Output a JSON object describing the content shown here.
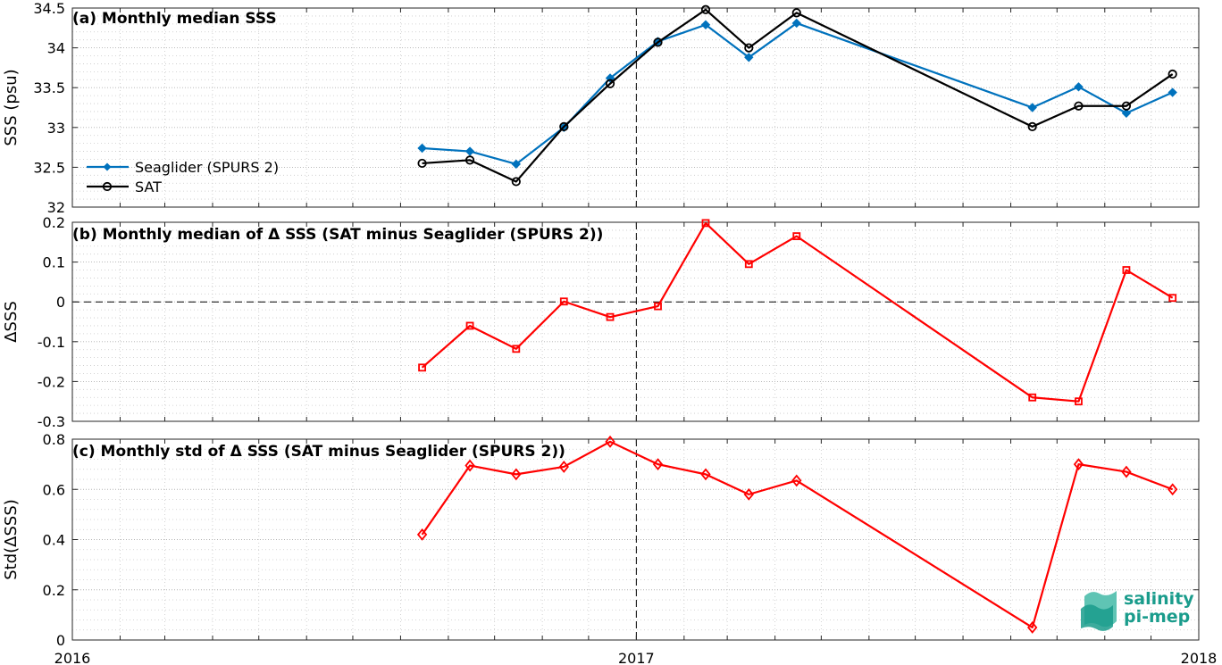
{
  "chart_data": [
    {
      "type": "line",
      "title": "(a) Monthly median SSS",
      "ylabel": "SSS (psu)",
      "ylim": [
        32,
        34.5
      ],
      "yticks": [
        32,
        32.5,
        33,
        33.5,
        34,
        34.5
      ],
      "ytick_labels": [
        "32",
        "32.5",
        "33",
        "33.5",
        "34",
        "34.5"
      ],
      "xlim": [
        "2016-01-01",
        "2018-01-01"
      ],
      "grid": true,
      "legend_placement": "center-left",
      "series": [
        {
          "name": "Seaglider (SPURS 2)",
          "color": "#0072bd",
          "marker": "filled-diamond",
          "x": [
            "2016-08-15",
            "2016-09-15",
            "2016-10-15",
            "2016-11-15",
            "2016-12-15",
            "2017-01-15",
            "2017-02-15",
            "2017-03-15",
            "2017-04-15",
            "2017-09-15",
            "2017-10-15",
            "2017-11-15",
            "2017-12-15"
          ],
          "values": [
            32.74,
            32.7,
            32.54,
            33.0,
            33.62,
            34.08,
            34.29,
            33.88,
            34.31,
            33.25,
            33.51,
            33.18,
            33.44
          ]
        },
        {
          "name": "SAT",
          "color": "#000000",
          "marker": "open-circle",
          "x": [
            "2016-08-15",
            "2016-09-15",
            "2016-10-15",
            "2016-11-15",
            "2016-12-15",
            "2017-01-15",
            "2017-02-15",
            "2017-03-15",
            "2017-04-15",
            "2017-09-15",
            "2017-10-15",
            "2017-11-15",
            "2017-12-15"
          ],
          "values": [
            32.55,
            32.59,
            32.32,
            33.01,
            33.55,
            34.07,
            34.48,
            34.0,
            34.44,
            33.01,
            33.27,
            33.27,
            33.67
          ]
        }
      ]
    },
    {
      "type": "line",
      "title": "(b) Monthly median of Δ SSS (SAT minus Seaglider (SPURS 2))",
      "ylabel": "ΔSSS",
      "ylim": [
        -0.3,
        0.2
      ],
      "yticks": [
        -0.3,
        -0.2,
        -0.1,
        0,
        0.1,
        0.2
      ],
      "ytick_labels": [
        "-0.3",
        "-0.2",
        "-0.1",
        "0",
        "0.1",
        "0.2"
      ],
      "xlim": [
        "2016-01-01",
        "2018-01-01"
      ],
      "grid": true,
      "zero_line": true,
      "series": [
        {
          "color": "#ff0000",
          "marker": "open-square",
          "x": [
            "2016-08-15",
            "2016-09-15",
            "2016-10-15",
            "2016-11-15",
            "2016-12-15",
            "2017-01-15",
            "2017-02-15",
            "2017-03-15",
            "2017-04-15",
            "2017-09-15",
            "2017-10-15",
            "2017-11-15",
            "2017-12-15"
          ],
          "values": [
            -0.165,
            -0.06,
            -0.118,
            0.001,
            -0.038,
            -0.011,
            0.198,
            0.095,
            0.165,
            -0.24,
            -0.25,
            0.08,
            0.01
          ]
        }
      ]
    },
    {
      "type": "line",
      "title": "(c) Monthly std of Δ SSS (SAT minus Seaglider (SPURS 2))",
      "ylabel": "Std(ΔSSS)",
      "ylim": [
        0,
        0.8
      ],
      "yticks": [
        0,
        0.2,
        0.4,
        0.6,
        0.8
      ],
      "ytick_labels": [
        "0",
        "0.2",
        "0.4",
        "0.6",
        "0.8"
      ],
      "xlim": [
        "2016-01-01",
        "2018-01-01"
      ],
      "xticks": [
        "2016-01-01",
        "2017-01-01",
        "2018-01-01"
      ],
      "xtick_labels": [
        "2016",
        "2017",
        "2018"
      ],
      "grid": true,
      "series": [
        {
          "color": "#ff0000",
          "marker": "open-diamond",
          "x": [
            "2016-08-15",
            "2016-09-15",
            "2016-10-15",
            "2016-11-15",
            "2016-12-15",
            "2017-01-15",
            "2017-02-15",
            "2017-03-15",
            "2017-04-15",
            "2017-09-15",
            "2017-10-15",
            "2017-11-15",
            "2017-12-15"
          ],
          "values": [
            0.42,
            0.695,
            0.66,
            0.69,
            0.79,
            0.7,
            0.66,
            0.58,
            0.635,
            0.05,
            0.7,
            0.67,
            0.6
          ]
        }
      ]
    }
  ],
  "logo": {
    "line1": "salinity",
    "line2": "pi-mep"
  },
  "colors": {
    "seaglider": "#0072bd",
    "sat": "#000000",
    "delta": "#ff0000",
    "logo": "#1a9c8c"
  }
}
